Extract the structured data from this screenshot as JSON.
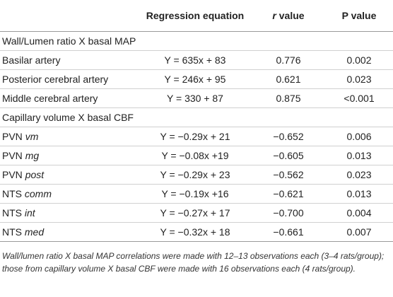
{
  "headers": {
    "col1": "",
    "col2": "Regression equation",
    "col3_italic": "r",
    "col3_plain": " value",
    "col4": "P value"
  },
  "sections": [
    {
      "title": "Wall/Lumen ratio X basal MAP",
      "rows": [
        {
          "name": "Basilar artery",
          "sub": "",
          "equation": "Y = 635x + 83",
          "r": "0.776",
          "p": "0.002"
        },
        {
          "name": "Posterior cerebral artery",
          "sub": "",
          "equation": "Y = 246x + 95",
          "r": "0.621",
          "p": "0.023"
        },
        {
          "name": "Middle cerebral artery",
          "sub": "",
          "equation": "Y = 330 + 87",
          "r": "0.875",
          "p": "<0.001"
        }
      ]
    },
    {
      "title": "Capillary volume X basal CBF",
      "rows": [
        {
          "name": "PVN ",
          "sub": "vm",
          "equation": "Y = −0.29x + 21",
          "r": "−0.652",
          "p": "0.006"
        },
        {
          "name": "PVN ",
          "sub": "mg",
          "equation": "Y = −0.08x +19",
          "r": "−0.605",
          "p": "0.013"
        },
        {
          "name": "PVN ",
          "sub": "post",
          "equation": "Y = −0.29x + 23",
          "r": "−0.562",
          "p": "0.023"
        },
        {
          "name": "NTS ",
          "sub": "comm",
          "equation": "Y = −0.19x +16",
          "r": "−0.621",
          "p": "0.013"
        },
        {
          "name": "NTS ",
          "sub": "int",
          "equation": "Y = −0.27x + 17",
          "r": "−0.700",
          "p": "0.004"
        },
        {
          "name": "NTS ",
          "sub": "med",
          "equation": "Y = −0.32x + 18",
          "r": "−0.661",
          "p": "0.007"
        }
      ]
    }
  ],
  "footnote": "Wall/lumen ratio X basal MAP correlations were made with 12–13 observations each (3–4 rats/group); those from capillary volume X basal CBF were made with 16 observations each (4 rats/group)."
}
